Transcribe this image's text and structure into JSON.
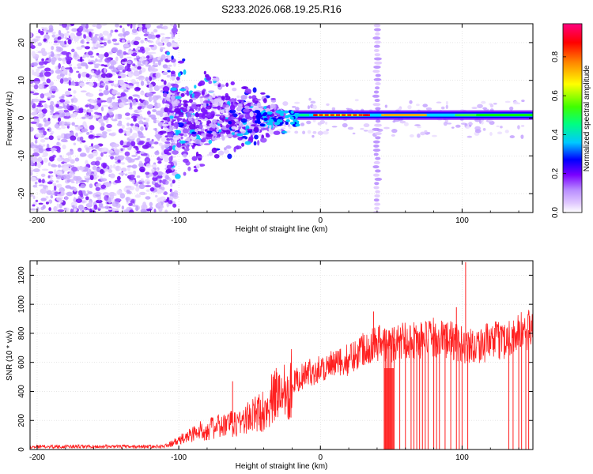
{
  "title": "S233.2026.068.19.25.R16",
  "chart_data": [
    {
      "type": "heatmap",
      "title": "S233.2026.068.19.25.R16",
      "xlabel": "Height of straight line (km)",
      "ylabel": "Frequency (Hz)",
      "xlim": [
        -205,
        150
      ],
      "ylim": [
        -25,
        25
      ],
      "x_ticks": [
        -200,
        -100,
        0,
        100
      ],
      "y_ticks": [
        -20,
        -10,
        0,
        10,
        20
      ],
      "colorbar": {
        "label": "Normalized spectral amplitude",
        "range": [
          0,
          0.97
        ],
        "ticks": [
          0.0,
          0.2,
          0.4,
          0.6,
          0.8
        ],
        "colors": [
          "#ffffff",
          "#e0c8ff",
          "#b88cff",
          "#7a00ff",
          "#0000ff",
          "#00c8ff",
          "#00ff80",
          "#80ff00",
          "#ffff00",
          "#ff8000",
          "#ff0000",
          "#ff0080"
        ]
      },
      "features": {
        "noise_region_x": [
          -205,
          -110
        ],
        "carrier_line_start_x": -20,
        "carrier_frequency_hz": 0.8,
        "vertical_streak_x": 40,
        "dispersed_region_x": [
          -110,
          -25
        ]
      },
      "grid": true
    },
    {
      "type": "line",
      "xlabel": "Height of straight line (km)",
      "ylabel": "SNR (10 * v/v)",
      "xlim": [
        -205,
        150
      ],
      "ylim": [
        0,
        1300
      ],
      "x_ticks": [
        -200,
        -100,
        0,
        100
      ],
      "y_ticks": [
        0,
        200,
        400,
        600,
        800,
        1000,
        1200
      ],
      "grid": true,
      "series": [
        {
          "name": "SNR",
          "color": "#ff2020",
          "x": [
            -205,
            -180,
            -150,
            -120,
            -110,
            -100,
            -90,
            -80,
            -70,
            -60,
            -50,
            -40,
            -30,
            -20,
            -10,
            0,
            10,
            20,
            30,
            40,
            50,
            60,
            70,
            80,
            90,
            100,
            110,
            120,
            130,
            140,
            150
          ],
          "values": [
            20,
            20,
            20,
            20,
            22,
            60,
            110,
            140,
            160,
            180,
            220,
            270,
            390,
            460,
            520,
            560,
            580,
            620,
            700,
            740,
            720,
            760,
            750,
            770,
            760,
            720,
            720,
            740,
            760,
            800,
            830
          ],
          "spikes": [
            {
              "x": 37.5,
              "value": 950
            },
            {
              "x": 102.5,
              "value": 1290
            },
            {
              "x": -62,
              "value": 470
            },
            {
              "x": 96,
              "value": 980
            }
          ],
          "dropouts": [
            45,
            46,
            47,
            48,
            49,
            50,
            52,
            56,
            60,
            64,
            66,
            68,
            70,
            72,
            74,
            76,
            80,
            82,
            84,
            88,
            92,
            96,
            98,
            100,
            104,
            133,
            136,
            140,
            142,
            145,
            147
          ]
        }
      ]
    }
  ]
}
